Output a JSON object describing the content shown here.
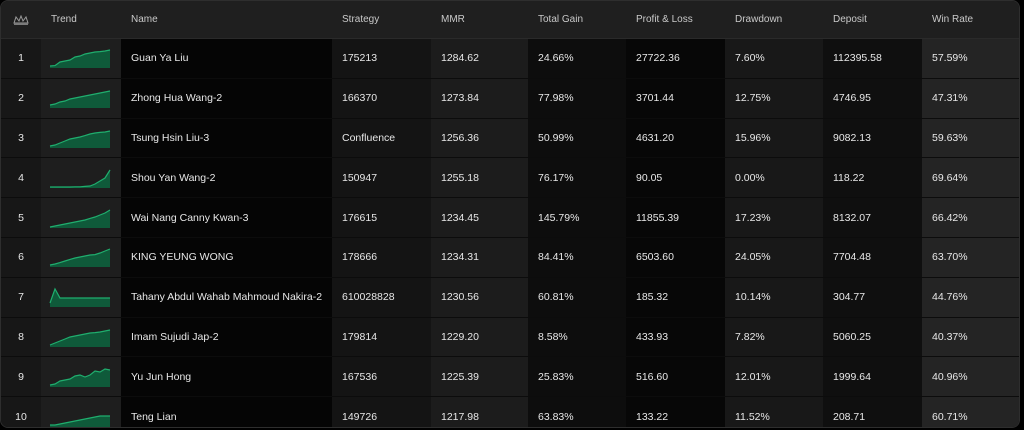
{
  "header": {
    "rank_icon": "crown-icon",
    "trend": "Trend",
    "name": "Name",
    "strategy": "Strategy",
    "mmr": "MMR",
    "total_gain": "Total Gain",
    "profit_loss": "Profit & Loss",
    "drawdown": "Drawdown",
    "deposit": "Deposit",
    "win_rate": "Win Rate"
  },
  "colors": {
    "sparkline": "#1fae6e",
    "sparkline_fill": "#0f5a3a"
  },
  "rows": [
    {
      "rank": "1",
      "name": "Guan Ya Liu",
      "strategy": "175213",
      "mmr": "1284.62",
      "total_gain": "24.66%",
      "profit_loss": "27722.36",
      "drawdown": "7.60%",
      "deposit": "112395.58",
      "win_rate": "57.59%",
      "trend": [
        0.1,
        0.12,
        0.3,
        0.35,
        0.4,
        0.55,
        0.6,
        0.7,
        0.75,
        0.8,
        0.82,
        0.85,
        0.9
      ]
    },
    {
      "rank": "2",
      "name": "Zhong Hua Wang-2",
      "strategy": "166370",
      "mmr": "1273.84",
      "total_gain": "77.98%",
      "profit_loss": "3701.44",
      "drawdown": "12.75%",
      "deposit": "4746.95",
      "win_rate": "47.31%",
      "trend": [
        0.15,
        0.2,
        0.3,
        0.35,
        0.45,
        0.5,
        0.55,
        0.6,
        0.65,
        0.7,
        0.75,
        0.8,
        0.85
      ]
    },
    {
      "rank": "3",
      "name": "Tsung Hsin Liu-3",
      "strategy": "Confluence",
      "mmr": "1256.36",
      "total_gain": "50.99%",
      "profit_loss": "4631.20",
      "drawdown": "15.96%",
      "deposit": "9082.13",
      "win_rate": "59.63%",
      "trend": [
        0.1,
        0.15,
        0.25,
        0.35,
        0.45,
        0.5,
        0.55,
        0.62,
        0.7,
        0.75,
        0.78,
        0.8,
        0.85
      ]
    },
    {
      "rank": "4",
      "name": "Shou Yan Wang-2",
      "strategy": "150947",
      "mmr": "1255.18",
      "total_gain": "76.17%",
      "profit_loss": "90.05",
      "drawdown": "0.00%",
      "deposit": "118.22",
      "win_rate": "69.64%",
      "trend": [
        0.05,
        0.05,
        0.05,
        0.05,
        0.05,
        0.06,
        0.06,
        0.08,
        0.1,
        0.2,
        0.35,
        0.5,
        0.9
      ]
    },
    {
      "rank": "5",
      "name": "Wai Nang Canny Kwan-3",
      "strategy": "176615",
      "mmr": "1234.45",
      "total_gain": "145.79%",
      "profit_loss": "11855.39",
      "drawdown": "17.23%",
      "deposit": "8132.07",
      "win_rate": "66.42%",
      "trend": [
        0.05,
        0.1,
        0.15,
        0.2,
        0.25,
        0.3,
        0.35,
        0.4,
        0.48,
        0.55,
        0.65,
        0.75,
        0.9
      ]
    },
    {
      "rank": "6",
      "name": "KING YEUNG WONG",
      "strategy": "178666",
      "mmr": "1234.31",
      "total_gain": "84.41%",
      "profit_loss": "6503.60",
      "drawdown": "24.05%",
      "deposit": "7704.48",
      "win_rate": "63.70%",
      "trend": [
        0.1,
        0.15,
        0.22,
        0.3,
        0.38,
        0.45,
        0.5,
        0.55,
        0.6,
        0.62,
        0.7,
        0.8,
        0.9
      ]
    },
    {
      "rank": "7",
      "name": "Tahany Abdul Wahab Mahmoud Nakira-2",
      "strategy": "610028828",
      "mmr": "1230.56",
      "total_gain": "60.81%",
      "profit_loss": "185.32",
      "drawdown": "10.14%",
      "deposit": "304.77",
      "win_rate": "44.76%",
      "trend": [
        0.2,
        0.9,
        0.45,
        0.45,
        0.45,
        0.45,
        0.45,
        0.45,
        0.45,
        0.45,
        0.45,
        0.45,
        0.45
      ]
    },
    {
      "rank": "8",
      "name": "Imam Sujudi Jap-2",
      "strategy": "179814",
      "mmr": "1229.20",
      "total_gain": "8.58%",
      "profit_loss": "433.93",
      "drawdown": "7.82%",
      "deposit": "5060.25",
      "win_rate": "40.37%",
      "trend": [
        0.1,
        0.2,
        0.3,
        0.4,
        0.5,
        0.55,
        0.6,
        0.65,
        0.7,
        0.72,
        0.75,
        0.8,
        0.85
      ]
    },
    {
      "rank": "9",
      "name": "Yu Jun Hong",
      "strategy": "167536",
      "mmr": "1225.39",
      "total_gain": "25.83%",
      "profit_loss": "516.60",
      "drawdown": "12.01%",
      "deposit": "1999.64",
      "win_rate": "40.96%",
      "trend": [
        0.1,
        0.15,
        0.3,
        0.35,
        0.4,
        0.55,
        0.6,
        0.5,
        0.6,
        0.8,
        0.75,
        0.9,
        0.85
      ]
    },
    {
      "rank": "10",
      "name": "Teng Lian",
      "strategy": "149726",
      "mmr": "1217.98",
      "total_gain": "63.83%",
      "profit_loss": "133.22",
      "drawdown": "11.52%",
      "deposit": "208.71",
      "win_rate": "60.71%",
      "trend": [
        0.1,
        0.1,
        0.15,
        0.2,
        0.25,
        0.3,
        0.35,
        0.4,
        0.45,
        0.5,
        0.55,
        0.55,
        0.55
      ]
    }
  ]
}
